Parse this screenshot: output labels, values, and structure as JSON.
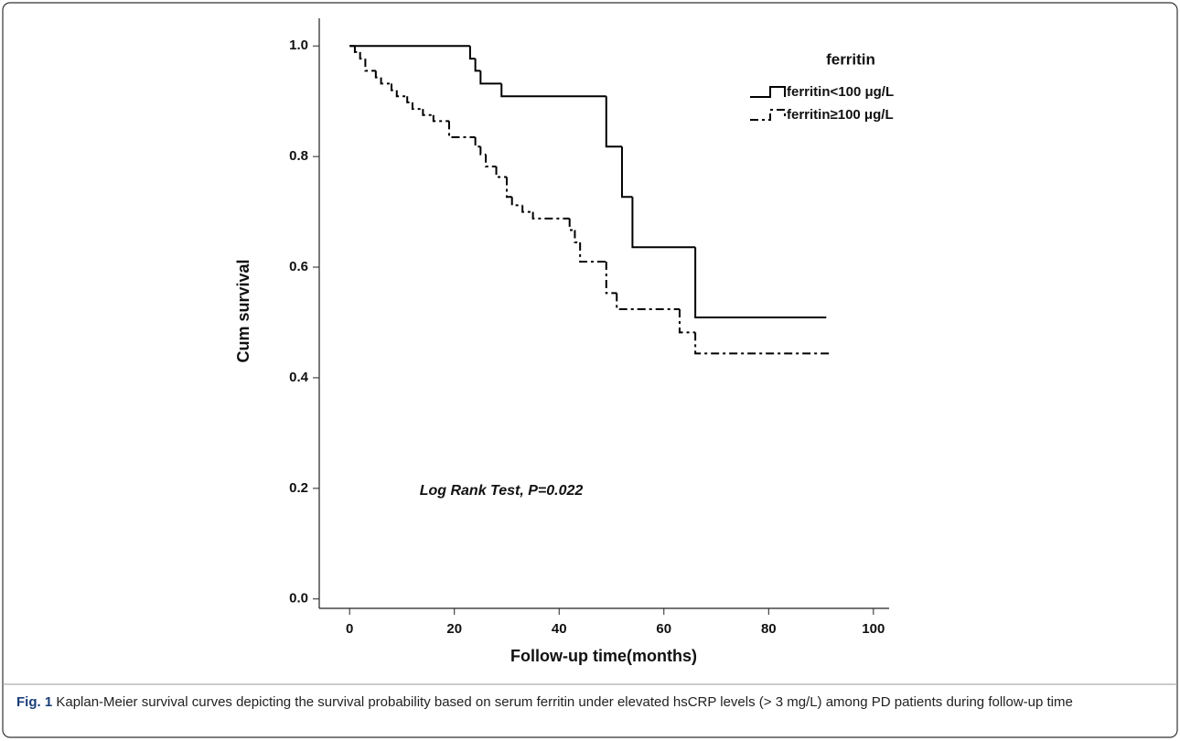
{
  "chart_data": {
    "type": "step",
    "xlabel": "Follow-up time(months)",
    "ylabel": "Cum survival",
    "annotation": "Log Rank Test, P=0.022",
    "legend_title": "ferritin",
    "legend_position": "upper right",
    "xlim": [
      -5.8,
      103
    ],
    "xticks": [
      0,
      20,
      40,
      60,
      80,
      100
    ],
    "ylim": [
      -0.017,
      1.05
    ],
    "yticks": [
      {
        "value": 0,
        "label": "0.0"
      },
      {
        "value": 0.2,
        "label": "0.2"
      },
      {
        "value": 0.4,
        "label": "0.4"
      },
      {
        "value": 0.6,
        "label": "0.6"
      },
      {
        "value": 0.8,
        "label": "0.8"
      },
      {
        "value": 1,
        "label": "1.0"
      }
    ],
    "series": [
      {
        "name": "ferritin<100 μg/L",
        "color": "#000000",
        "line_style": "solid",
        "x": [
          0,
          23,
          24,
          25,
          29,
          49,
          52,
          54,
          66,
          91
        ],
        "values": [
          1,
          0.977,
          0.955,
          0.932,
          0.909,
          0.818,
          0.727,
          0.636,
          0.509,
          0.509
        ]
      },
      {
        "name": "ferritin≥100 μg/L",
        "color": "#000000",
        "line_style": "dashdot",
        "x": [
          0,
          1,
          2,
          3,
          5,
          6,
          8,
          9,
          11,
          12,
          14,
          16,
          19,
          24,
          25,
          26,
          28,
          30,
          31,
          33,
          35,
          42,
          43,
          44,
          49,
          51,
          63,
          66,
          92
        ],
        "values": [
          1,
          0.989,
          0.977,
          0.955,
          0.943,
          0.932,
          0.92,
          0.909,
          0.898,
          0.886,
          0.875,
          0.864,
          0.835,
          0.818,
          0.804,
          0.782,
          0.763,
          0.727,
          0.712,
          0.7,
          0.688,
          0.667,
          0.645,
          0.61,
          0.553,
          0.524,
          0.482,
          0.444,
          0.444
        ]
      }
    ],
    "caption_label": "Fig. 1",
    "caption": "Kaplan-Meier survival curves depicting the survival probability based on serum ferritin under elevated hsCRP levels (> 3 mg/L) among PD patients during follow-up time"
  }
}
